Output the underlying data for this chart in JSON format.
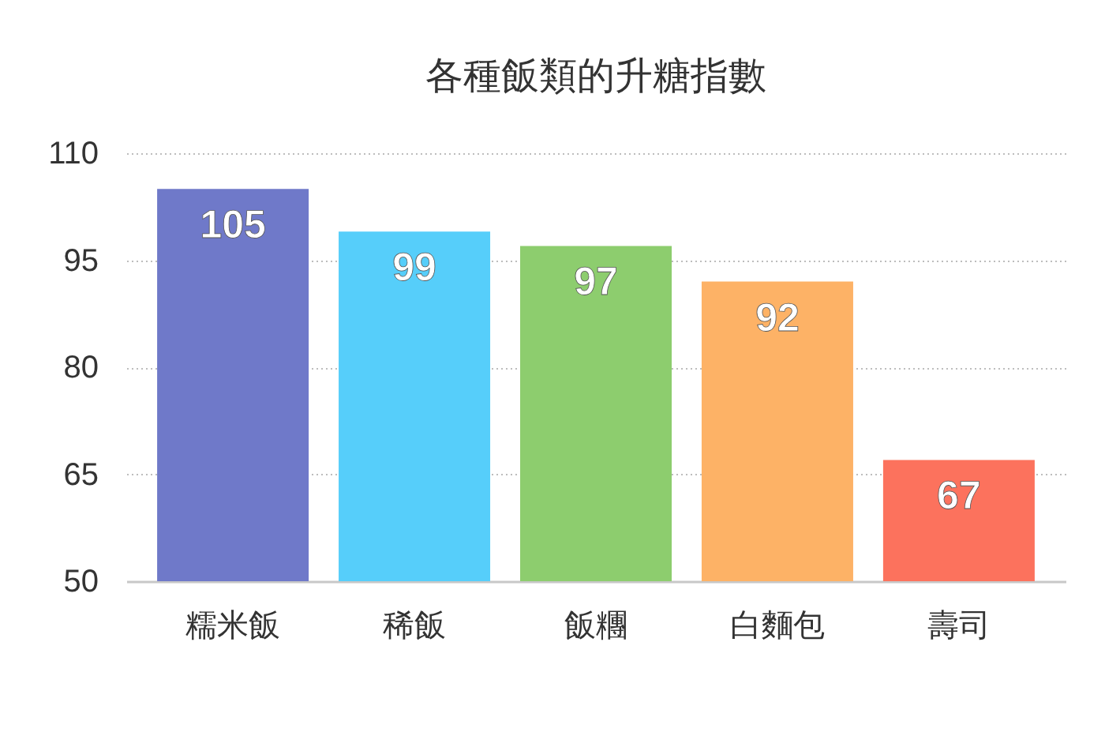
{
  "chart_data": {
    "type": "bar",
    "title": "各種飯類的升糖指數",
    "categories": [
      "糯米飯",
      "稀飯",
      "飯糰",
      "白麵包",
      "壽司"
    ],
    "values": [
      105,
      99,
      97,
      92,
      67
    ],
    "colors": [
      "#6f79c9",
      "#56cefa",
      "#8dcd6e",
      "#fdb266",
      "#fc725d"
    ],
    "ylim": [
      50,
      110
    ],
    "yticks": [
      50,
      65,
      80,
      95,
      110
    ],
    "grid": "y",
    "data_labels": true
  }
}
